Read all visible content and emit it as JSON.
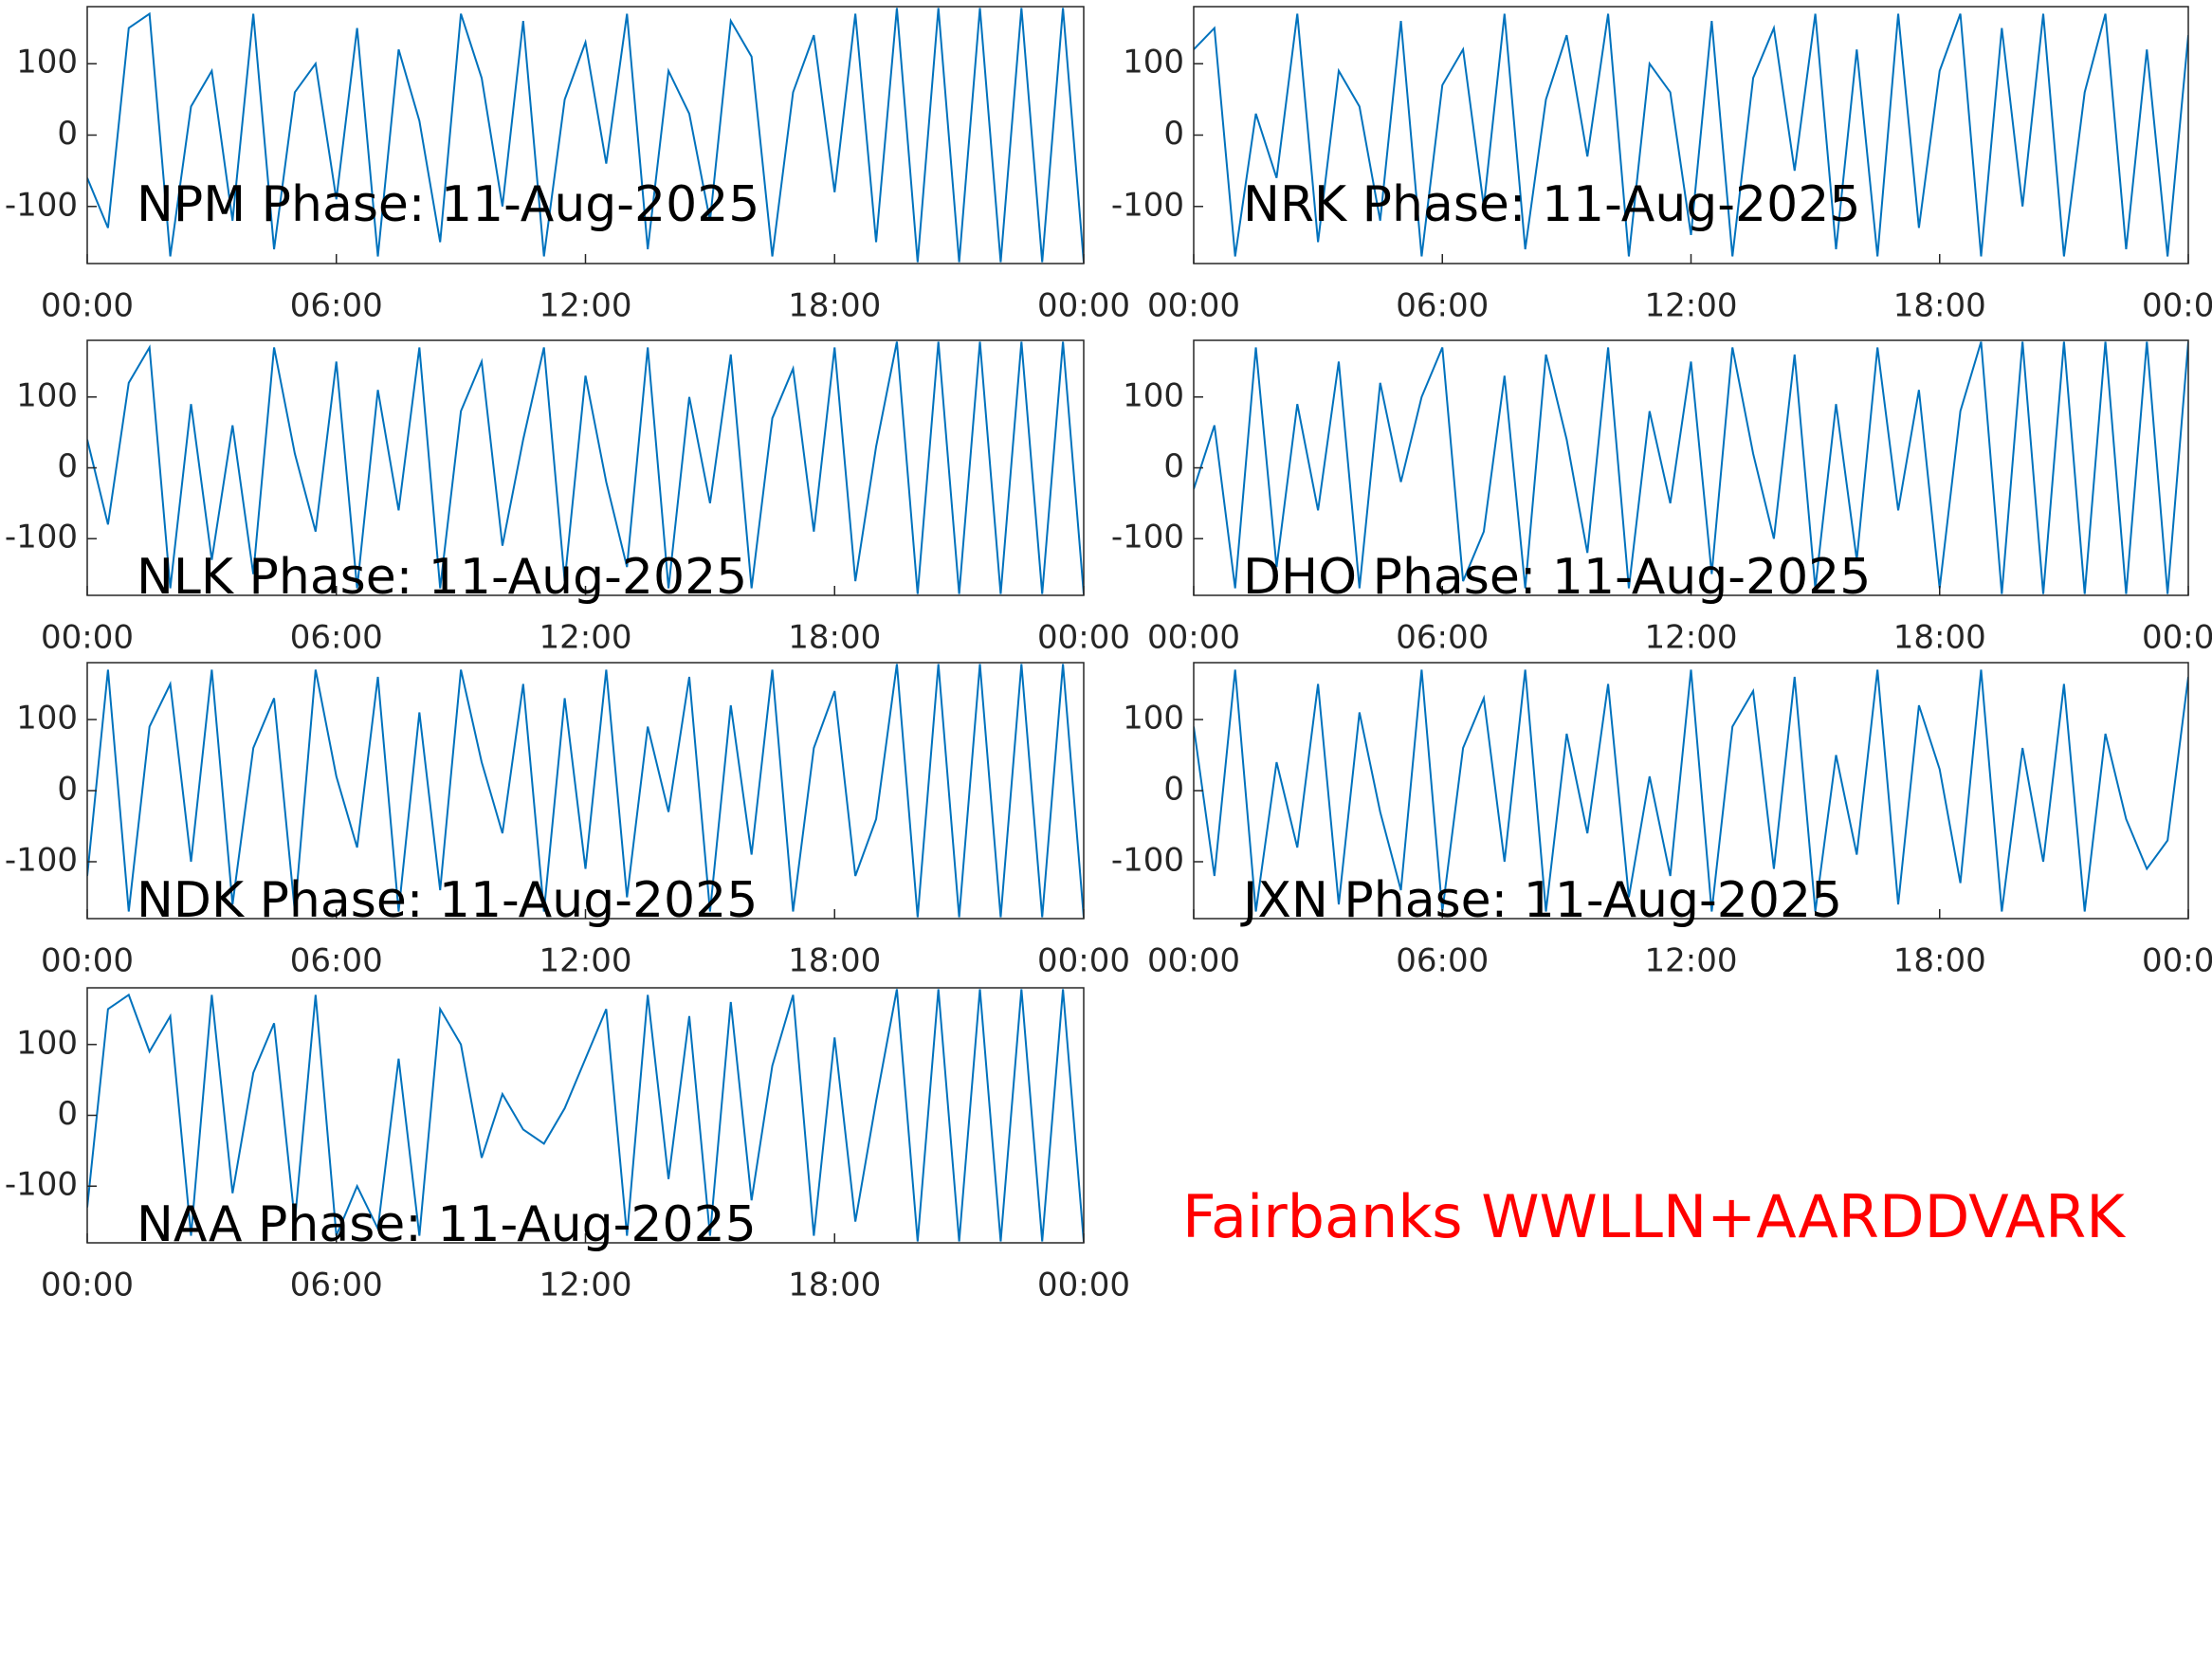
{
  "chart_data": [
    {
      "type": "line",
      "title": "NPM Phase: 11-Aug-2025",
      "color": "#0072bd",
      "x": [
        0,
        0.5,
        1,
        1.5,
        2,
        2.5,
        3,
        3.5,
        4,
        4.5,
        5,
        5.5,
        6,
        6.5,
        7,
        7.5,
        8,
        8.5,
        9,
        9.5,
        10,
        10.5,
        11,
        11.5,
        12,
        12.5,
        13,
        13.5,
        14,
        14.5,
        15,
        15.5,
        16,
        16.5,
        17,
        17.5,
        18,
        18.5,
        19,
        19.5,
        20,
        20.5,
        21,
        21.5,
        22,
        22.5,
        23,
        23.5,
        24
      ],
      "values": [
        -60,
        -130,
        150,
        170,
        -170,
        40,
        90,
        -120,
        170,
        -160,
        60,
        100,
        -90,
        150,
        -170,
        120,
        20,
        -150,
        170,
        80,
        -100,
        160,
        -170,
        50,
        130,
        -40,
        170,
        -160,
        90,
        30,
        -120,
        160,
        110,
        -170,
        60,
        140,
        -80,
        170,
        -150,
        178,
        -178,
        178,
        -178,
        178,
        -178,
        178,
        -178,
        178,
        -178
      ],
      "xlim": [
        0,
        24
      ],
      "ylim": [
        -180,
        180
      ],
      "yticks": [
        -100,
        0,
        100
      ],
      "xticks": [
        {
          "value": 0,
          "label": "00:00"
        },
        {
          "value": 6,
          "label": "06:00"
        },
        {
          "value": 12,
          "label": "12:00"
        },
        {
          "value": 18,
          "label": "18:00"
        },
        {
          "value": 24,
          "label": "00:00"
        }
      ]
    },
    {
      "type": "line",
      "title": "NRK Phase: 11-Aug-2025",
      "color": "#0072bd",
      "x": [
        0,
        0.5,
        1,
        1.5,
        2,
        2.5,
        3,
        3.5,
        4,
        4.5,
        5,
        5.5,
        6,
        6.5,
        7,
        7.5,
        8,
        8.5,
        9,
        9.5,
        10,
        10.5,
        11,
        11.5,
        12,
        12.5,
        13,
        13.5,
        14,
        14.5,
        15,
        15.5,
        16,
        16.5,
        17,
        17.5,
        18,
        18.5,
        19,
        19.5,
        20,
        20.5,
        21,
        21.5,
        22,
        22.5,
        23,
        23.5,
        24
      ],
      "values": [
        120,
        150,
        -170,
        30,
        -60,
        170,
        -150,
        90,
        40,
        -120,
        160,
        -170,
        70,
        120,
        -100,
        170,
        -160,
        50,
        140,
        -30,
        170,
        -170,
        100,
        60,
        -140,
        160,
        -170,
        80,
        150,
        -50,
        170,
        -160,
        120,
        -170,
        170,
        -130,
        90,
        170,
        -170,
        150,
        -100,
        170,
        -170,
        60,
        170,
        -160,
        120,
        -170,
        140
      ],
      "xlim": [
        0,
        24
      ],
      "ylim": [
        -180,
        180
      ],
      "yticks": [
        -100,
        0,
        100
      ],
      "xticks": [
        {
          "value": 0,
          "label": "00:00"
        },
        {
          "value": 6,
          "label": "06:00"
        },
        {
          "value": 12,
          "label": "12:00"
        },
        {
          "value": 18,
          "label": "18:00"
        },
        {
          "value": 24,
          "label": "00:00"
        }
      ]
    },
    {
      "type": "line",
      "title": "NLK Phase: 11-Aug-2025",
      "color": "#0072bd",
      "x": [
        0,
        0.5,
        1,
        1.5,
        2,
        2.5,
        3,
        3.5,
        4,
        4.5,
        5,
        5.5,
        6,
        6.5,
        7,
        7.5,
        8,
        8.5,
        9,
        9.5,
        10,
        10.5,
        11,
        11.5,
        12,
        12.5,
        13,
        13.5,
        14,
        14.5,
        15,
        15.5,
        16,
        16.5,
        17,
        17.5,
        18,
        18.5,
        19,
        19.5,
        20,
        20.5,
        21,
        21.5,
        22,
        22.5,
        23,
        23.5,
        24
      ],
      "values": [
        40,
        -80,
        120,
        170,
        -170,
        90,
        -130,
        60,
        -150,
        170,
        20,
        -90,
        150,
        -170,
        110,
        -60,
        170,
        -170,
        80,
        150,
        -110,
        40,
        170,
        -160,
        130,
        -20,
        -140,
        170,
        -170,
        100,
        -50,
        160,
        -170,
        70,
        140,
        -90,
        170,
        -160,
        30,
        178,
        -178,
        178,
        -178,
        178,
        -178,
        178,
        -178,
        178,
        -178
      ],
      "xlim": [
        0,
        24
      ],
      "ylim": [
        -180,
        180
      ],
      "yticks": [
        -100,
        0,
        100
      ],
      "xticks": [
        {
          "value": 0,
          "label": "00:00"
        },
        {
          "value": 6,
          "label": "06:00"
        },
        {
          "value": 12,
          "label": "12:00"
        },
        {
          "value": 18,
          "label": "18:00"
        },
        {
          "value": 24,
          "label": "00:00"
        }
      ]
    },
    {
      "type": "line",
      "title": "DHO Phase: 11-Aug-2025",
      "color": "#0072bd",
      "x": [
        0,
        0.5,
        1,
        1.5,
        2,
        2.5,
        3,
        3.5,
        4,
        4.5,
        5,
        5.5,
        6,
        6.5,
        7,
        7.5,
        8,
        8.5,
        9,
        9.5,
        10,
        10.5,
        11,
        11.5,
        12,
        12.5,
        13,
        13.5,
        14,
        14.5,
        15,
        15.5,
        16,
        16.5,
        17,
        17.5,
        18,
        18.5,
        19,
        19.5,
        20,
        20.5,
        21,
        21.5,
        22,
        22.5,
        23,
        23.5,
        24
      ],
      "values": [
        -30,
        60,
        -170,
        170,
        -140,
        90,
        -60,
        150,
        -170,
        120,
        -20,
        100,
        170,
        -160,
        -90,
        130,
        -170,
        160,
        40,
        -120,
        170,
        -170,
        80,
        -50,
        150,
        -150,
        170,
        20,
        -100,
        160,
        -170,
        90,
        -130,
        170,
        -60,
        110,
        -170,
        80,
        178,
        -178,
        178,
        -178,
        178,
        -178,
        178,
        -178,
        178,
        -178,
        178
      ],
      "xlim": [
        0,
        24
      ],
      "ylim": [
        -180,
        180
      ],
      "yticks": [
        -100,
        0,
        100
      ],
      "xticks": [
        {
          "value": 0,
          "label": "00:00"
        },
        {
          "value": 6,
          "label": "06:00"
        },
        {
          "value": 12,
          "label": "12:00"
        },
        {
          "value": 18,
          "label": "18:00"
        },
        {
          "value": 24,
          "label": "00:00"
        }
      ]
    },
    {
      "type": "line",
      "title": "NDK Phase: 11-Aug-2025",
      "color": "#0072bd",
      "x": [
        0,
        0.5,
        1,
        1.5,
        2,
        2.5,
        3,
        3.5,
        4,
        4.5,
        5,
        5.5,
        6,
        6.5,
        7,
        7.5,
        8,
        8.5,
        9,
        9.5,
        10,
        10.5,
        11,
        11.5,
        12,
        12.5,
        13,
        13.5,
        14,
        14.5,
        15,
        15.5,
        16,
        16.5,
        17,
        17.5,
        18,
        18.5,
        19,
        19.5,
        20,
        20.5,
        21,
        21.5,
        22,
        22.5,
        23,
        23.5,
        24
      ],
      "values": [
        -120,
        170,
        -170,
        90,
        150,
        -100,
        170,
        -160,
        60,
        130,
        -170,
        170,
        20,
        -80,
        160,
        -170,
        110,
        -140,
        170,
        40,
        -60,
        150,
        -170,
        130,
        -110,
        170,
        -150,
        90,
        -30,
        160,
        -170,
        120,
        -90,
        170,
        -170,
        60,
        140,
        -120,
        -40,
        178,
        -178,
        178,
        -178,
        178,
        -178,
        178,
        -178,
        178,
        -178
      ],
      "xlim": [
        0,
        24
      ],
      "ylim": [
        -180,
        180
      ],
      "yticks": [
        -100,
        0,
        100
      ],
      "xticks": [
        {
          "value": 0,
          "label": "00:00"
        },
        {
          "value": 6,
          "label": "06:00"
        },
        {
          "value": 12,
          "label": "12:00"
        },
        {
          "value": 18,
          "label": "18:00"
        },
        {
          "value": 24,
          "label": "00:00"
        }
      ]
    },
    {
      "type": "line",
      "title": "JXN Phase: 11-Aug-2025",
      "color": "#0072bd",
      "x": [
        0,
        0.5,
        1,
        1.5,
        2,
        2.5,
        3,
        3.5,
        4,
        4.5,
        5,
        5.5,
        6,
        6.5,
        7,
        7.5,
        8,
        8.5,
        9,
        9.5,
        10,
        10.5,
        11,
        11.5,
        12,
        12.5,
        13,
        13.5,
        14,
        14.5,
        15,
        15.5,
        16,
        16.5,
        17,
        17.5,
        18,
        18.5,
        19,
        19.5,
        20,
        20.5,
        21,
        21.5,
        22,
        22.5,
        23,
        23.5,
        24
      ],
      "values": [
        90,
        -120,
        170,
        -170,
        40,
        -80,
        150,
        -160,
        110,
        -30,
        -140,
        170,
        -170,
        60,
        130,
        -100,
        170,
        -170,
        80,
        -60,
        150,
        -150,
        20,
        -120,
        170,
        -170,
        90,
        140,
        -110,
        160,
        -170,
        50,
        -90,
        170,
        -160,
        120,
        30,
        -130,
        170,
        -170,
        60,
        -100,
        150,
        -170,
        80,
        -40,
        -110,
        -70,
        160
      ],
      "xlim": [
        0,
        24
      ],
      "ylim": [
        -180,
        180
      ],
      "yticks": [
        -100,
        0,
        100
      ],
      "xticks": [
        {
          "value": 0,
          "label": "00:00"
        },
        {
          "value": 6,
          "label": "06:00"
        },
        {
          "value": 12,
          "label": "12:00"
        },
        {
          "value": 18,
          "label": "18:00"
        },
        {
          "value": 24,
          "label": "00:00"
        }
      ]
    },
    {
      "type": "line",
      "title": "NAA Phase: 11-Aug-2025",
      "color": "#0072bd",
      "x": [
        0,
        0.5,
        1,
        1.5,
        2,
        2.5,
        3,
        3.5,
        4,
        4.5,
        5,
        5.5,
        6,
        6.5,
        7,
        7.5,
        8,
        8.5,
        9,
        9.5,
        10,
        10.5,
        11,
        11.5,
        12,
        12.5,
        13,
        13.5,
        14,
        14.5,
        15,
        15.5,
        16,
        16.5,
        17,
        17.5,
        18,
        18.5,
        19,
        19.5,
        20,
        20.5,
        21,
        21.5,
        22,
        22.5,
        23,
        23.5,
        24
      ],
      "values": [
        -130,
        150,
        170,
        90,
        140,
        -170,
        170,
        -110,
        60,
        130,
        -150,
        170,
        -170,
        -100,
        -160,
        80,
        -170,
        150,
        100,
        -60,
        30,
        -20,
        -40,
        10,
        80,
        150,
        -170,
        170,
        -90,
        140,
        -170,
        160,
        -120,
        70,
        170,
        -170,
        110,
        -150,
        20,
        178,
        -178,
        178,
        -178,
        178,
        -178,
        178,
        -178,
        178,
        -178
      ],
      "xlim": [
        0,
        24
      ],
      "ylim": [
        -180,
        180
      ],
      "yticks": [
        -100,
        0,
        100
      ],
      "xticks": [
        {
          "value": 0,
          "label": "00:00"
        },
        {
          "value": 6,
          "label": "06:00"
        },
        {
          "value": 12,
          "label": "12:00"
        },
        {
          "value": 18,
          "label": "18:00"
        },
        {
          "value": 24,
          "label": "00:00"
        }
      ]
    }
  ],
  "annotation": "Fairbanks WWLLN+AARDDVARK"
}
